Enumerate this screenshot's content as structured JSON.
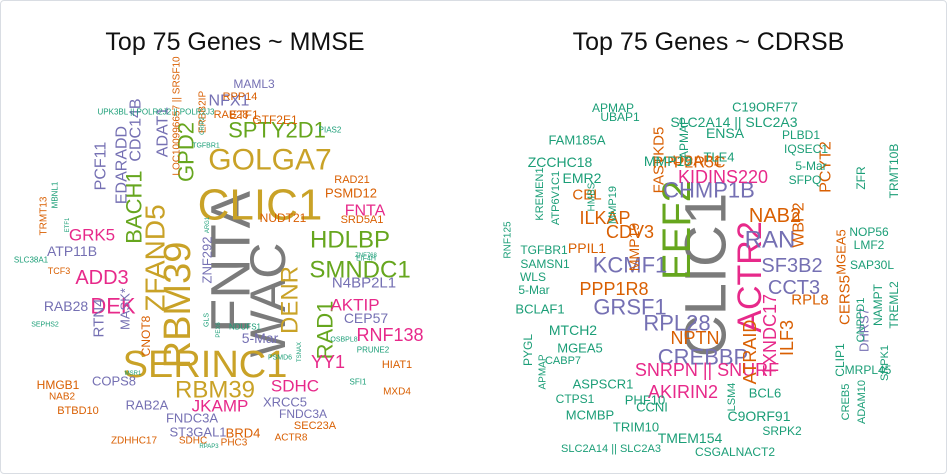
{
  "colors": {
    "grey": "#7b7b7b",
    "gold": "#c9a227",
    "pink": "#e7298a",
    "purple": "#7570b3",
    "orange": "#d95f02",
    "green": "#66a61e",
    "teal": "#1b9e77"
  },
  "chart_data": [
    {
      "type": "wordcloud",
      "title": "Top 75 Genes ~ MMSE",
      "words": [
        {
          "text": "FNTA",
          "size": 56,
          "color": "grey"
        },
        {
          "text": "WAC",
          "size": 50,
          "color": "grey"
        },
        {
          "text": "CLIC1",
          "size": 44,
          "color": "gold"
        },
        {
          "text": "SERINC1",
          "size": 38,
          "color": "gold"
        },
        {
          "text": "RBM39",
          "size": 38,
          "color": "gold"
        },
        {
          "text": "GOLGA7",
          "size": 30,
          "color": "gold"
        },
        {
          "text": "ZFAND5",
          "size": 28,
          "color": "gold"
        },
        {
          "text": "RBM39",
          "size": 24,
          "color": "gold"
        },
        {
          "text": "DENR",
          "size": 24,
          "color": "gold"
        },
        {
          "text": "HDLBP",
          "size": 24,
          "color": "green"
        },
        {
          "text": "SMNDC1",
          "size": 24,
          "color": "green"
        },
        {
          "text": "SPTY2D1",
          "size": 22,
          "color": "green"
        },
        {
          "text": "GPD2",
          "size": 22,
          "color": "green"
        },
        {
          "text": "BACH1",
          "size": 22,
          "color": "green"
        },
        {
          "text": "RAD1",
          "size": 22,
          "color": "green"
        },
        {
          "text": "ADD3",
          "size": 20,
          "color": "pink"
        },
        {
          "text": "DEK",
          "size": 22,
          "color": "pink"
        },
        {
          "text": "RNF138",
          "size": 18,
          "color": "pink"
        },
        {
          "text": "AKTIP",
          "size": 17,
          "color": "pink"
        },
        {
          "text": "SDHC",
          "size": 17,
          "color": "pink"
        },
        {
          "text": "YY1",
          "size": 18,
          "color": "pink"
        },
        {
          "text": "JKAMP",
          "size": 17,
          "color": "pink"
        },
        {
          "text": "GRK5",
          "size": 17,
          "color": "pink"
        },
        {
          "text": "FNTA",
          "size": 16,
          "color": "pink"
        },
        {
          "text": "CDC14B",
          "size": 16,
          "color": "purple"
        },
        {
          "text": "ADAT1",
          "size": 16,
          "color": "purple"
        },
        {
          "text": "PCF11",
          "size": 16,
          "color": "purple"
        },
        {
          "text": "EDARADD",
          "size": 16,
          "color": "purple"
        },
        {
          "text": "NFX1",
          "size": 16,
          "color": "purple"
        },
        {
          "text": "ATP11B",
          "size": 14,
          "color": "purple"
        },
        {
          "text": "RTN4",
          "size": 15,
          "color": "purple"
        },
        {
          "text": "RAB28",
          "size": 14,
          "color": "purple"
        },
        {
          "text": "MASK*",
          "size": 13,
          "color": "purple"
        },
        {
          "text": "N4BP2L1",
          "size": 15,
          "color": "purple"
        },
        {
          "text": "CEP57",
          "size": 14,
          "color": "purple"
        },
        {
          "text": "ZNF292",
          "size": 13,
          "color": "purple"
        },
        {
          "text": "5-Mar",
          "size": 14,
          "color": "purple"
        },
        {
          "text": "COPS8",
          "size": 13,
          "color": "purple"
        },
        {
          "text": "RAB2A",
          "size": 13,
          "color": "purple"
        },
        {
          "text": "FNDC3A",
          "size": 13,
          "color": "purple"
        },
        {
          "text": "ST3GAL1",
          "size": 13,
          "color": "purple"
        },
        {
          "text": "XRCC5",
          "size": 13,
          "color": "purple"
        },
        {
          "text": "FNDC3A",
          "size": 12,
          "color": "purple"
        },
        {
          "text": "HMGB1",
          "size": 12,
          "color": "orange"
        },
        {
          "text": "BTBD10",
          "size": 11,
          "color": "orange"
        },
        {
          "text": "BRD4",
          "size": 13,
          "color": "orange"
        },
        {
          "text": "PSMD12",
          "size": 13,
          "color": "orange"
        },
        {
          "text": "NUDT21",
          "size": 12,
          "color": "orange"
        },
        {
          "text": "RAD21",
          "size": 11,
          "color": "orange"
        },
        {
          "text": "SRD5A1",
          "size": 11,
          "color": "orange"
        },
        {
          "text": "HIAT1",
          "size": 11,
          "color": "orange"
        },
        {
          "text": "MXD4",
          "size": 10,
          "color": "orange"
        },
        {
          "text": "SEC23A",
          "size": 11,
          "color": "orange"
        },
        {
          "text": "ACTR8",
          "size": 10,
          "color": "orange"
        },
        {
          "text": "ZDHHC17",
          "size": 10,
          "color": "orange"
        },
        {
          "text": "SDHC",
          "size": 10,
          "color": "orange"
        },
        {
          "text": "PHC3",
          "size": 10,
          "color": "orange"
        },
        {
          "text": "GTF2E1",
          "size": 12,
          "color": "orange"
        },
        {
          "text": "ETF1",
          "size": 12,
          "color": "orange"
        },
        {
          "text": "RAB28",
          "size": 11,
          "color": "orange"
        },
        {
          "text": "RPP14",
          "size": 11,
          "color": "orange"
        },
        {
          "text": "LOC100996657 || SRSF10",
          "size": 10,
          "color": "orange"
        },
        {
          "text": "CNOT8",
          "size": 12,
          "color": "orange"
        },
        {
          "text": "TCF3",
          "size": 9,
          "color": "orange"
        },
        {
          "text": "NAB2",
          "size": 10,
          "color": "orange"
        },
        {
          "text": "TRMT13",
          "size": 10,
          "color": "orange"
        },
        {
          "text": "ERBB2IP",
          "size": 10,
          "color": "orange"
        },
        {
          "text": "MAML3",
          "size": 12,
          "color": "purple"
        },
        {
          "text": "UPK3BL || POLR2J2 || POLR2J3",
          "size": 8,
          "color": "teal"
        },
        {
          "text": "PIAS2",
          "size": 8,
          "color": "teal"
        },
        {
          "text": "MBNL1",
          "size": 8,
          "color": "teal"
        },
        {
          "text": "SLC38A1",
          "size": 8,
          "color": "teal"
        },
        {
          "text": "SEPHS2",
          "size": 7,
          "color": "teal"
        },
        {
          "text": "PRUNE2",
          "size": 8,
          "color": "teal"
        },
        {
          "text": "SFI1",
          "size": 8,
          "color": "teal"
        },
        {
          "text": "NDUFS1",
          "size": 8,
          "color": "teal"
        },
        {
          "text": "GLS",
          "size": 7,
          "color": "teal"
        },
        {
          "text": "PSMD6",
          "size": 7,
          "color": "teal"
        },
        {
          "text": "ZNF768",
          "size": 6,
          "color": "teal"
        },
        {
          "text": "EIF4H",
          "size": 7,
          "color": "teal"
        },
        {
          "text": "OSBPL8",
          "size": 7,
          "color": "teal"
        },
        {
          "text": "MSR1",
          "size": 6,
          "color": "teal"
        },
        {
          "text": "RPAP3",
          "size": 6,
          "color": "teal"
        },
        {
          "text": "TGFBR1",
          "size": 7,
          "color": "teal"
        },
        {
          "text": "CRIP2",
          "size": 6,
          "color": "teal"
        },
        {
          "text": "ARG1",
          "size": 6,
          "color": "teal"
        },
        {
          "text": "ETF1",
          "size": 6,
          "color": "teal"
        },
        {
          "text": "TSNAX",
          "size": 6,
          "color": "teal"
        },
        {
          "text": "PEX6",
          "size": 6,
          "color": "teal"
        },
        {
          "text": "CDC42",
          "size": 6,
          "color": "teal"
        }
      ]
    },
    {
      "type": "wordcloud",
      "title": "Top 75 Genes ~ CDRSB",
      "words": [
        {
          "text": "CLIC1",
          "size": 58,
          "color": "grey"
        },
        {
          "text": "EEF2",
          "size": 40,
          "color": "green"
        },
        {
          "text": "ACTR2",
          "size": 34,
          "color": "pink"
        },
        {
          "text": "RAN",
          "size": 24,
          "color": "purple"
        },
        {
          "text": "CHMP1B",
          "size": 22,
          "color": "purple"
        },
        {
          "text": "KCMF1",
          "size": 22,
          "color": "purple"
        },
        {
          "text": "GRSF1",
          "size": 22,
          "color": "purple"
        },
        {
          "text": "RPL28",
          "size": 22,
          "color": "purple"
        },
        {
          "text": "CREBBP",
          "size": 22,
          "color": "purple"
        },
        {
          "text": "SF3B2",
          "size": 20,
          "color": "purple"
        },
        {
          "text": "CCT3",
          "size": 20,
          "color": "purple"
        },
        {
          "text": "NAB2",
          "size": 20,
          "color": "orange"
        },
        {
          "text": "KIDINS220",
          "size": 18,
          "color": "pink"
        },
        {
          "text": "SNRPN || SNURF",
          "size": 18,
          "color": "pink"
        },
        {
          "text": "AKIRIN2",
          "size": 18,
          "color": "pink"
        },
        {
          "text": "TXNDC17",
          "size": 18,
          "color": "pink"
        },
        {
          "text": "CDV3",
          "size": 18,
          "color": "orange"
        },
        {
          "text": "ILKAP",
          "size": 18,
          "color": "orange"
        },
        {
          "text": "PPP1R8",
          "size": 18,
          "color": "orange"
        },
        {
          "text": "ATRAID",
          "size": 18,
          "color": "orange"
        },
        {
          "text": "ILF3",
          "size": 18,
          "color": "orange"
        },
        {
          "text": "NPTN",
          "size": 18,
          "color": "orange"
        },
        {
          "text": "PPP2R5C",
          "size": 16,
          "color": "orange"
        },
        {
          "text": "WBP2",
          "size": 16,
          "color": "orange"
        },
        {
          "text": "PCYT2",
          "size": 16,
          "color": "orange"
        },
        {
          "text": "FASTKD5",
          "size": 15,
          "color": "orange"
        },
        {
          "text": "UBAP1",
          "size": 15,
          "color": "orange"
        },
        {
          "text": "CBL",
          "size": 15,
          "color": "orange"
        },
        {
          "text": "MMP19",
          "size": 14,
          "color": "orange"
        },
        {
          "text": "PPIL1",
          "size": 14,
          "color": "orange"
        },
        {
          "text": "RPL8",
          "size": 15,
          "color": "orange"
        },
        {
          "text": "CERS5",
          "size": 15,
          "color": "orange"
        },
        {
          "text": "MGEA5",
          "size": 13,
          "color": "orange"
        },
        {
          "text": "DHRS7",
          "size": 13,
          "color": "purple"
        },
        {
          "text": "APMAP",
          "size": 12,
          "color": "teal"
        },
        {
          "text": "APMAP",
          "size": 12,
          "color": "teal"
        },
        {
          "text": "UBAP1",
          "size": 12,
          "color": "teal"
        },
        {
          "text": "FAM185A",
          "size": 13,
          "color": "teal"
        },
        {
          "text": "C19ORF77",
          "size": 13,
          "color": "teal"
        },
        {
          "text": "SLC2A14 || SLC2A3",
          "size": 14,
          "color": "teal"
        },
        {
          "text": "MMP19",
          "size": 14,
          "color": "teal"
        },
        {
          "text": "ENSA",
          "size": 14,
          "color": "teal"
        },
        {
          "text": "PLBD1",
          "size": 12,
          "color": "teal"
        },
        {
          "text": "IQSEC1",
          "size": 12,
          "color": "teal"
        },
        {
          "text": "ZCCHC18",
          "size": 14,
          "color": "teal"
        },
        {
          "text": "TLE4",
          "size": 13,
          "color": "teal"
        },
        {
          "text": "EMR2",
          "size": 14,
          "color": "teal"
        },
        {
          "text": "5-Mar",
          "size": 12,
          "color": "teal"
        },
        {
          "text": "SFPQ",
          "size": 12,
          "color": "teal"
        },
        {
          "text": "TRMT10B",
          "size": 12,
          "color": "teal"
        },
        {
          "text": "ZFR",
          "size": 12,
          "color": "teal"
        },
        {
          "text": "KREMEN1",
          "size": 11,
          "color": "teal"
        },
        {
          "text": "ATP6V1C1",
          "size": 11,
          "color": "teal"
        },
        {
          "text": "HMBS",
          "size": 10,
          "color": "teal"
        },
        {
          "text": "MMP19",
          "size": 11,
          "color": "teal"
        },
        {
          "text": "RNF125",
          "size": 10,
          "color": "teal"
        },
        {
          "text": "TGFBR1",
          "size": 12,
          "color": "teal"
        },
        {
          "text": "SAMSN1",
          "size": 12,
          "color": "teal"
        },
        {
          "text": "WLS",
          "size": 12,
          "color": "teal"
        },
        {
          "text": "5-Mar",
          "size": 12,
          "color": "teal"
        },
        {
          "text": "NOP56",
          "size": 12,
          "color": "teal"
        },
        {
          "text": "LMF2",
          "size": 12,
          "color": "teal"
        },
        {
          "text": "SAP30L",
          "size": 12,
          "color": "teal"
        },
        {
          "text": "NAMPT",
          "size": 12,
          "color": "teal"
        },
        {
          "text": "TREML2",
          "size": 12,
          "color": "teal"
        },
        {
          "text": "BCLAF1",
          "size": 13,
          "color": "teal"
        },
        {
          "text": "PYGL",
          "size": 12,
          "color": "teal"
        },
        {
          "text": "MTCH2",
          "size": 14,
          "color": "teal"
        },
        {
          "text": "MGEA5",
          "size": 13,
          "color": "teal"
        },
        {
          "text": "CABP7",
          "size": 11,
          "color": "teal"
        },
        {
          "text": "APMAP",
          "size": 10,
          "color": "teal"
        },
        {
          "text": "ASPSCR1",
          "size": 13,
          "color": "teal"
        },
        {
          "text": "CTPS1",
          "size": 12,
          "color": "teal"
        },
        {
          "text": "PHF10",
          "size": 13,
          "color": "teal"
        },
        {
          "text": "MCMBP",
          "size": 13,
          "color": "teal"
        },
        {
          "text": "TRIM10",
          "size": 13,
          "color": "teal"
        },
        {
          "text": "CCNI",
          "size": 13,
          "color": "teal"
        },
        {
          "text": "LSM4",
          "size": 11,
          "color": "teal"
        },
        {
          "text": "BCL6",
          "size": 13,
          "color": "teal"
        },
        {
          "text": "C9ORF91",
          "size": 14,
          "color": "teal"
        },
        {
          "text": "TMEM154",
          "size": 14,
          "color": "teal"
        },
        {
          "text": "SRPK2",
          "size": 12,
          "color": "teal"
        },
        {
          "text": "CLIP1",
          "size": 12,
          "color": "teal"
        },
        {
          "text": "CREB5",
          "size": 11,
          "color": "teal"
        },
        {
          "text": "ADAM10",
          "size": 11,
          "color": "teal"
        },
        {
          "text": "SRPK1",
          "size": 11,
          "color": "teal"
        },
        {
          "text": "MRPL45",
          "size": 12,
          "color": "teal"
        },
        {
          "text": "CNPPD1",
          "size": 11,
          "color": "teal"
        },
        {
          "text": "SLC2A14 || SLC2A3",
          "size": 11,
          "color": "teal"
        },
        {
          "text": "CSGALNACT2",
          "size": 12,
          "color": "teal"
        }
      ]
    }
  ]
}
